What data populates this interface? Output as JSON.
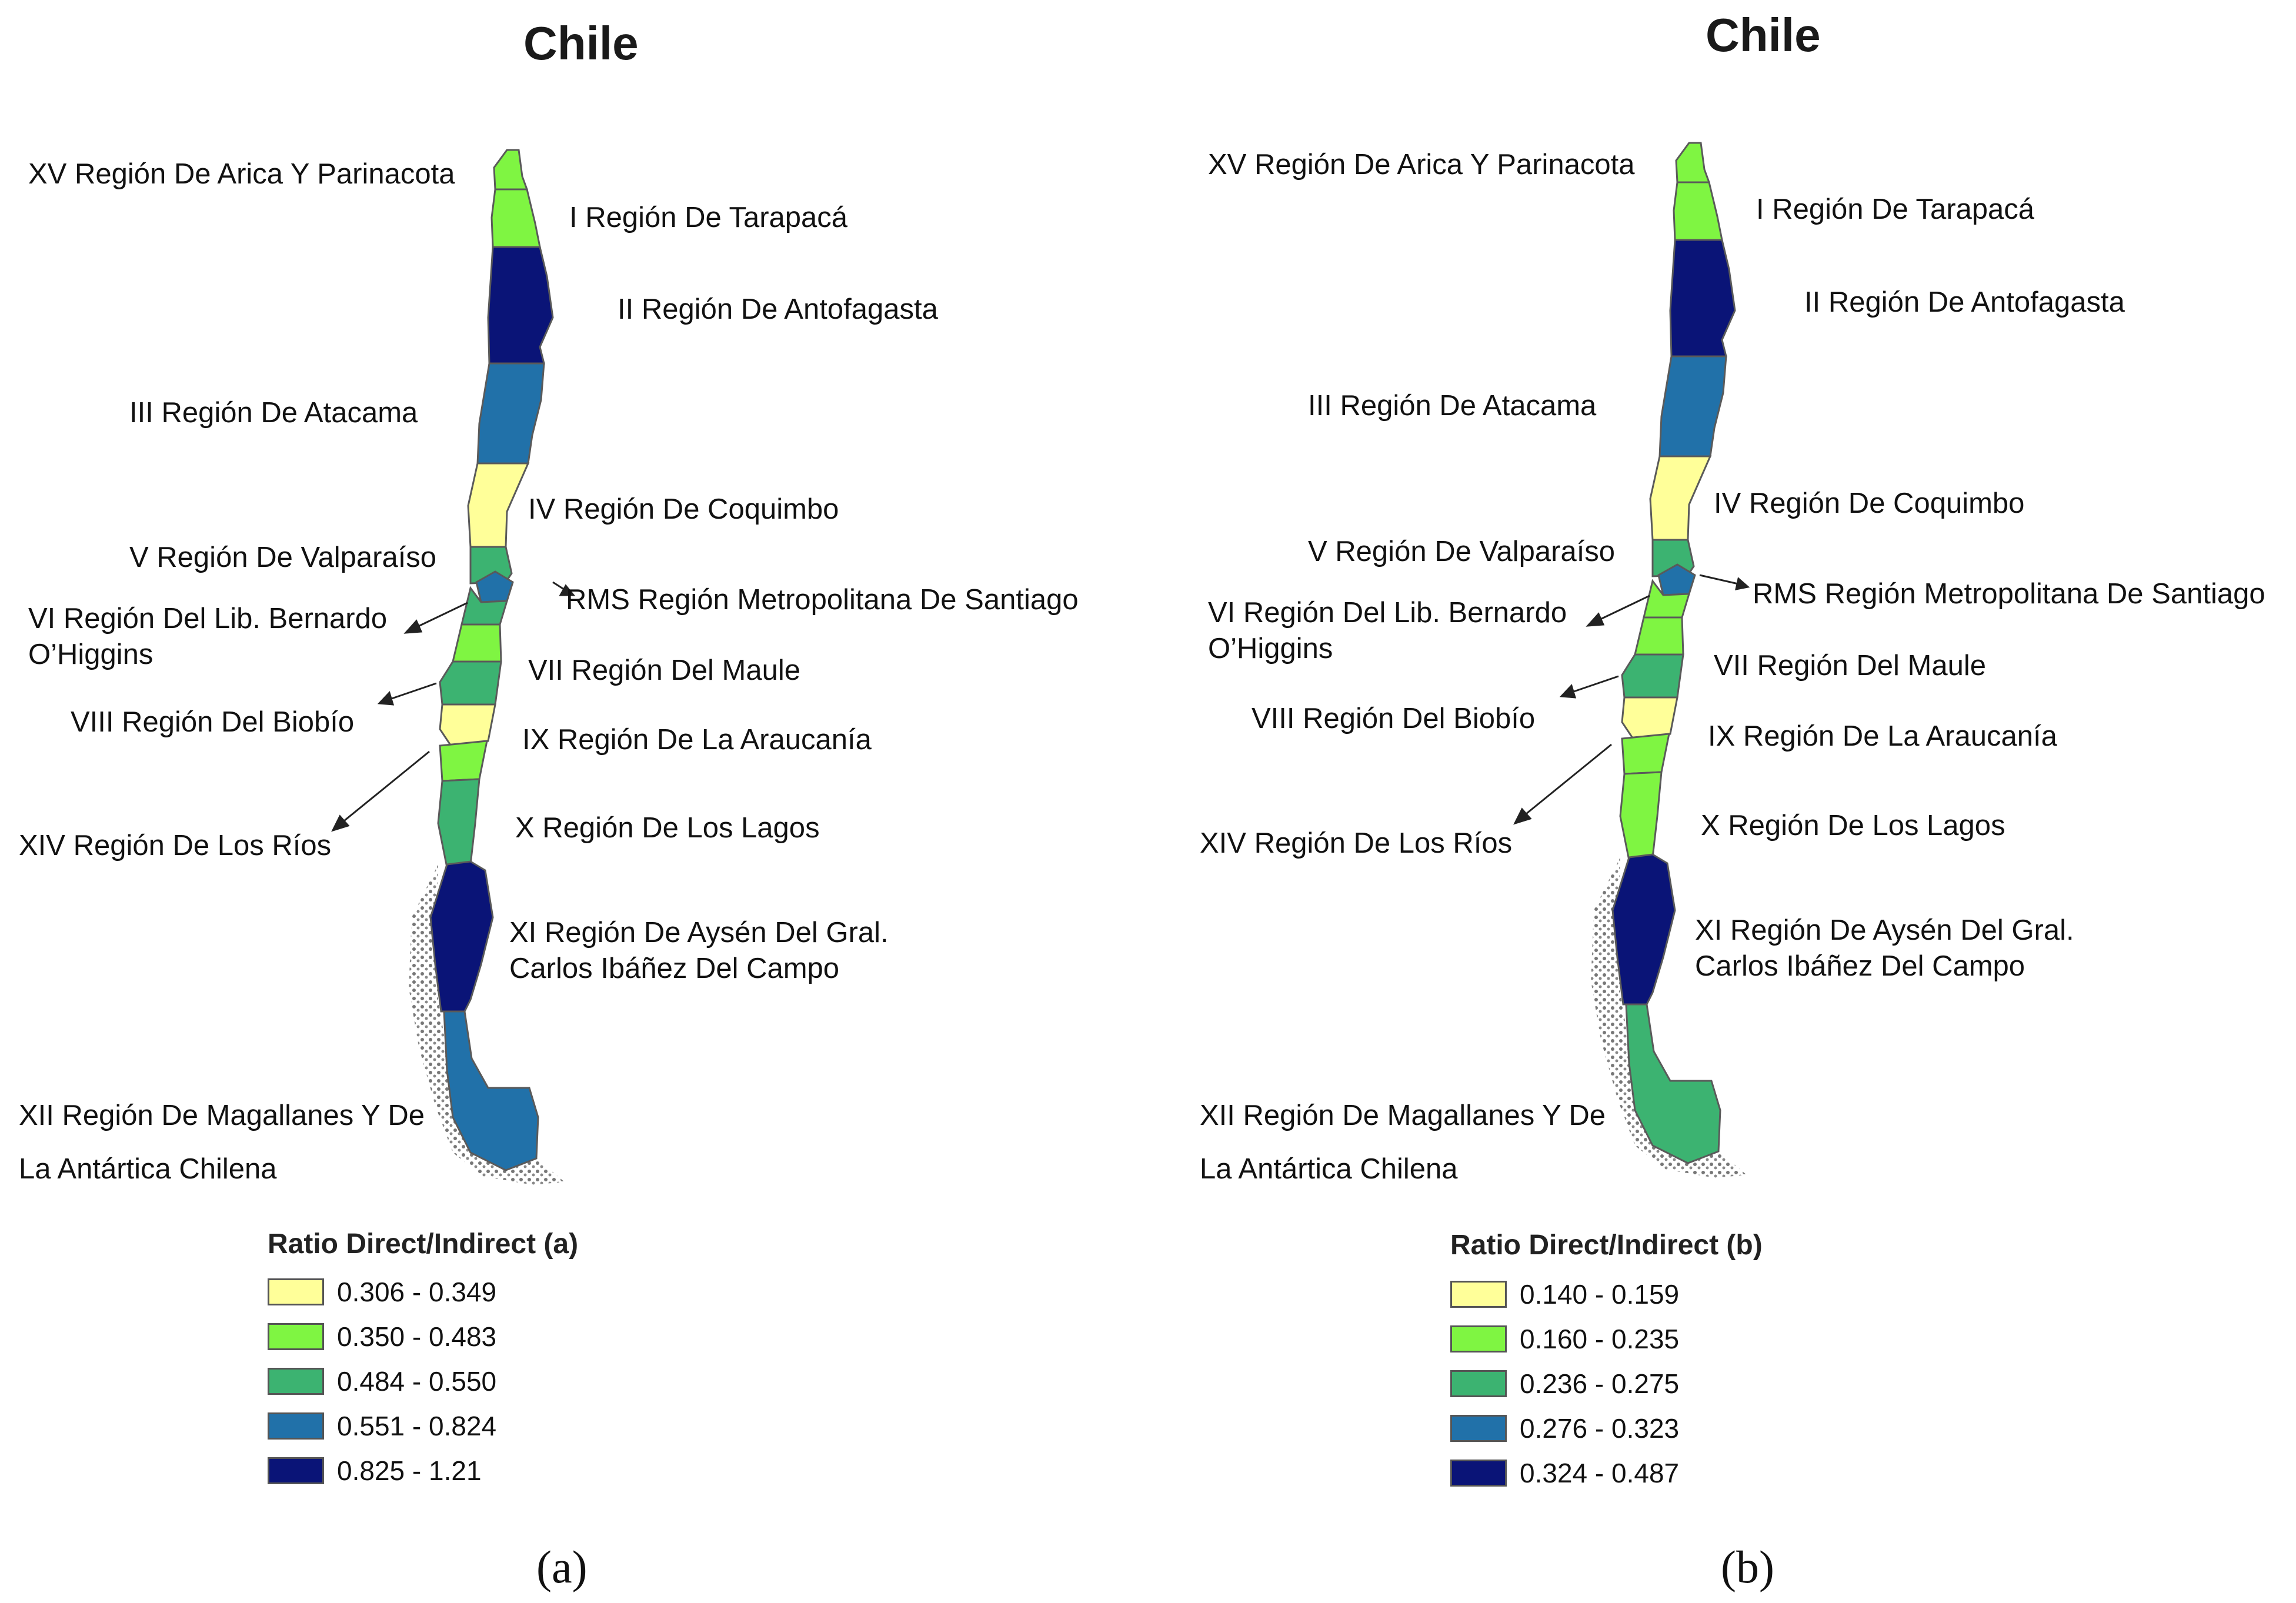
{
  "colors": {
    "class1": "#ffff99",
    "class2": "#7ff542",
    "class3": "#3cb371",
    "class4": "#2171a9",
    "class5": "#0a1477",
    "islands": "#777777"
  },
  "panels": [
    {
      "title": "Chile",
      "caption": "(a)",
      "legend": {
        "title": "Ratio Direct/Indirect (a)",
        "classes": [
          "0.306 - 0.349",
          "0.350 - 0.483",
          "0.484 - 0.550",
          "0.551 - 0.824",
          "0.825 - 1.21"
        ]
      },
      "regions": [
        {
          "code": "XV",
          "label": "XV Región De Arica Y Parinacota",
          "class": 2
        },
        {
          "code": "I",
          "label": "I Región De Tarapacá",
          "class": 2
        },
        {
          "code": "II",
          "label": "II Región De Antofagasta",
          "class": 5
        },
        {
          "code": "III",
          "label": "III Región De Atacama",
          "class": 4
        },
        {
          "code": "IV",
          "label": "IV Región De Coquimbo",
          "class": 1
        },
        {
          "code": "V",
          "label": "V Región De Valparaíso",
          "class": 3
        },
        {
          "code": "RMS",
          "label": "RMS Región Metropolitana De Santiago",
          "class": 4
        },
        {
          "code": "VI",
          "label": "VI Región Del Lib. Bernardo O’Higgins",
          "class": 3
        },
        {
          "code": "VII",
          "label": "VII Región Del Maule",
          "class": 2
        },
        {
          "code": "VIII",
          "label": "VIII Región Del Biobío",
          "class": 3
        },
        {
          "code": "IX",
          "label": "IX Región De La Araucanía",
          "class": 1
        },
        {
          "code": "XIV",
          "label": "XIV Región De Los Ríos",
          "class": 2
        },
        {
          "code": "X",
          "label": "X Región De Los Lagos",
          "class": 3
        },
        {
          "code": "XI",
          "label": "XI Región De Aysén Del Gral. Carlos Ibáñez Del Campo",
          "class": 5
        },
        {
          "code": "XII",
          "label": "XII Región De Magallanes Y De La Antártica Chilena",
          "class": 4
        }
      ]
    },
    {
      "title": "Chile",
      "caption": "(b)",
      "legend": {
        "title": "Ratio Direct/Indirect (b)",
        "classes": [
          "0.140 - 0.159",
          "0.160 - 0.235",
          "0.236 - 0.275",
          "0.276 - 0.323",
          "0.324 - 0.487"
        ]
      },
      "regions": [
        {
          "code": "XV",
          "label": "XV Región De Arica Y Parinacota",
          "class": 2
        },
        {
          "code": "I",
          "label": "I Región De Tarapacá",
          "class": 2
        },
        {
          "code": "II",
          "label": "II Región De Antofagasta",
          "class": 5
        },
        {
          "code": "III",
          "label": "III Región De Atacama",
          "class": 4
        },
        {
          "code": "IV",
          "label": "IV Región De Coquimbo",
          "class": 1
        },
        {
          "code": "V",
          "label": "V Región De Valparaíso",
          "class": 3
        },
        {
          "code": "RMS",
          "label": "RMS Región Metropolitana De Santiago",
          "class": 4
        },
        {
          "code": "VI",
          "label": "VI Región Del Lib. Bernardo O’Higgins",
          "class": 2
        },
        {
          "code": "VII",
          "label": "VII Región Del Maule",
          "class": 2
        },
        {
          "code": "VIII",
          "label": "VIII Región Del Biobío",
          "class": 3
        },
        {
          "code": "IX",
          "label": "IX Región De La Araucanía",
          "class": 1
        },
        {
          "code": "XIV",
          "label": "XIV Región De Los Ríos",
          "class": 2
        },
        {
          "code": "X",
          "label": "X Región De Los Lagos",
          "class": 2
        },
        {
          "code": "XI",
          "label": "XI Región De Aysén Del Gral. Carlos Ibáñez Del Campo",
          "class": 5
        },
        {
          "code": "XII",
          "label": "XII Región De Magallanes Y De La Antártica Chilena",
          "class": 3
        }
      ]
    }
  ]
}
